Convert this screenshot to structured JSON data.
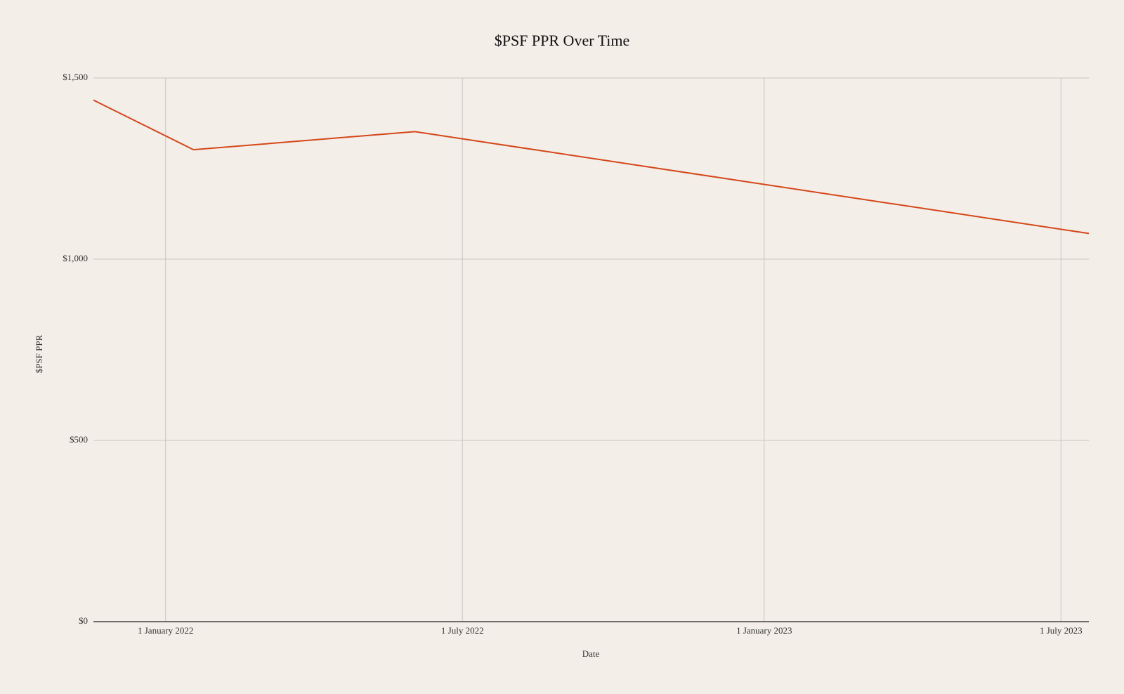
{
  "chart_data": {
    "type": "line",
    "title": "$PSF PPR Over Time",
    "x_label": "Date",
    "y_label": "$PSF PPR",
    "x": [
      "2021-11-18",
      "2022-01-18",
      "2022-06-02",
      "2023-07-18"
    ],
    "values": [
      1439,
      1302,
      1352,
      1071
    ],
    "color": "#d4471a",
    "xlim": [
      "2021-11-18",
      "2023-07-18"
    ],
    "xticks": [
      {
        "value": "2022-01-01",
        "label": "1 January 2022"
      },
      {
        "value": "2022-07-01",
        "label": "1 July 2022"
      },
      {
        "value": "2023-01-01",
        "label": "1 January 2023"
      },
      {
        "value": "2023-07-01",
        "label": "1 July 2023"
      }
    ],
    "ylim": [
      0,
      1500
    ],
    "yticks": [
      {
        "value": 0,
        "label": "$0"
      },
      {
        "value": 500,
        "label": "$500"
      },
      {
        "value": 1000,
        "label": "$1,000"
      },
      {
        "value": 1500,
        "label": "$1,500"
      }
    ],
    "grid": true
  }
}
